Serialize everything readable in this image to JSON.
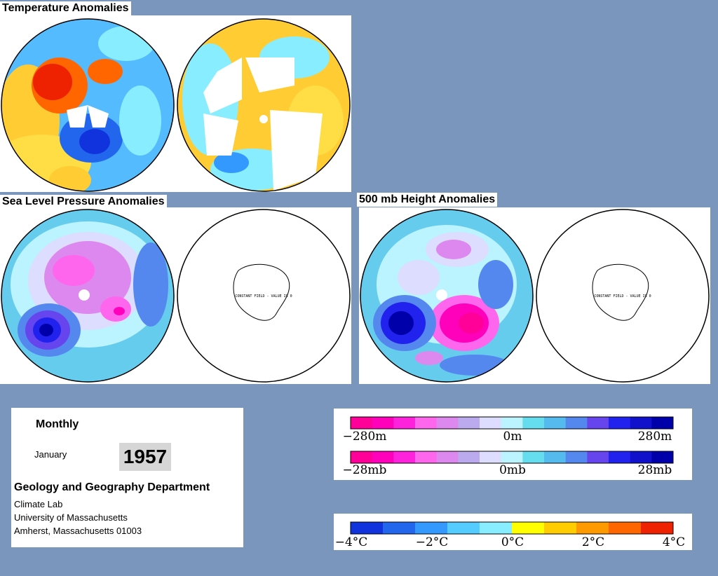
{
  "titles": {
    "temp": "Temperature Anomalies",
    "slp": "Sea Level Pressure Anomalies",
    "h500": "500 mb Height Anomalies"
  },
  "map_annotations": {
    "constant_field": "CONSTANT FIELD - VALUE IS 0"
  },
  "info": {
    "period": "Monthly",
    "month": "January",
    "year": "1957",
    "department": "Geology and Geography Department",
    "lab": "Climate Lab",
    "university": "University of Massachusetts",
    "address": "Amherst, Massachusetts 01003"
  },
  "legends": {
    "height": {
      "labels": [
        "−280m",
        "0m",
        "280m"
      ],
      "colors": [
        "#ff0099",
        "#ff00bb",
        "#ff22dd",
        "#ff66ee",
        "#dd88ee",
        "#bbaaee",
        "#ddddff",
        "#bbf3ff",
        "#66ddee",
        "#55bbee",
        "#5588ee",
        "#6644ee",
        "#2222ee",
        "#1111cc",
        "#0000aa"
      ]
    },
    "pressure": {
      "labels": [
        "−28mb",
        "0mb",
        "28mb"
      ],
      "colors": [
        "#ff0099",
        "#ff00bb",
        "#ff22dd",
        "#ff66ee",
        "#dd88ee",
        "#bbaaee",
        "#ddddff",
        "#bbf3ff",
        "#66ddee",
        "#55bbee",
        "#5588ee",
        "#6644ee",
        "#2222ee",
        "#1111cc",
        "#0000aa"
      ]
    },
    "temperature": {
      "labels": [
        "−4°C",
        "−2°C",
        "0°C",
        "2°C",
        "4°C"
      ],
      "colors": [
        "#1133dd",
        "#2266ee",
        "#3399ff",
        "#55ccff",
        "#88eeff",
        "#ffff00",
        "#ffcc00",
        "#ff9900",
        "#ff6600",
        "#ee2200"
      ]
    }
  }
}
